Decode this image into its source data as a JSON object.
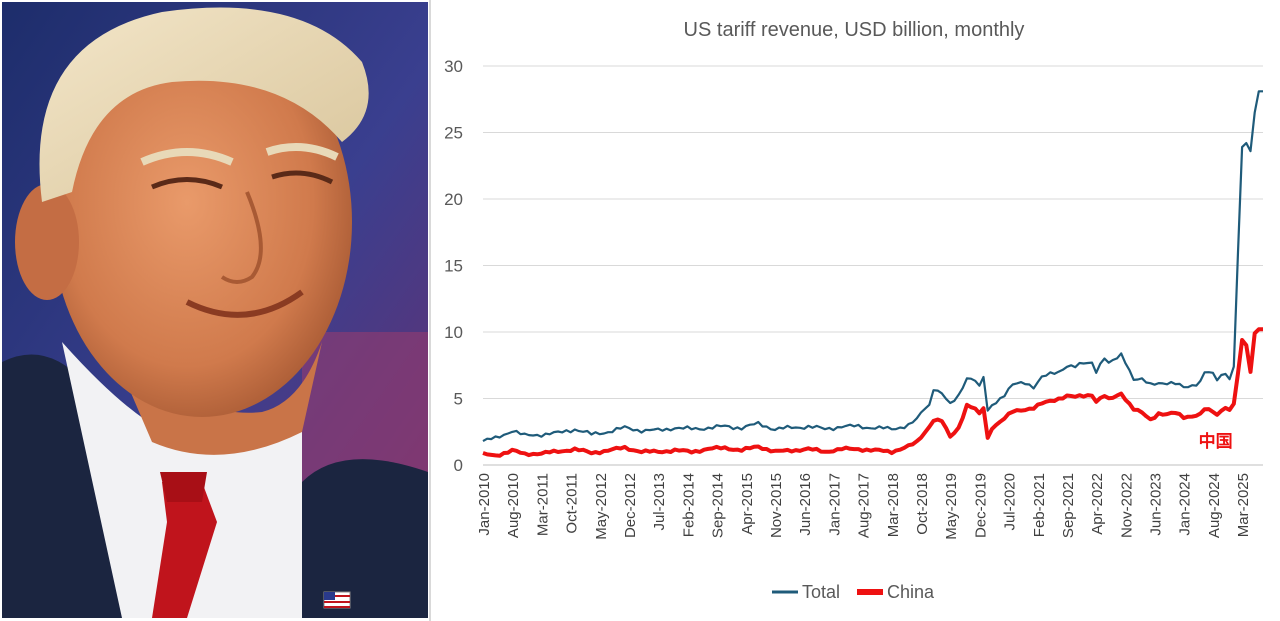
{
  "colors": {
    "total": "#1f5b7a",
    "china": "#ee1111",
    "grid": "#d9d9d9",
    "text": "#595959"
  },
  "photo": {
    "subject": "man-smiling-portrait"
  },
  "chart_data": {
    "type": "line",
    "title": "US tariff revenue, USD billion, monthly",
    "xlabel": "",
    "ylabel": "",
    "ylim": [
      0,
      30
    ],
    "yticks": [
      0,
      5,
      10,
      15,
      20,
      25,
      30
    ],
    "x_start": "Jan-2010",
    "x_end": "Aug-2025",
    "n_months": 188,
    "xtick_labels": [
      "Jan-2010",
      "Aug-2010",
      "Mar-2011",
      "Oct-2011",
      "May-2012",
      "Dec-2012",
      "Jul-2013",
      "Feb-2014",
      "Sep-2014",
      "Apr-2015",
      "Nov-2015",
      "Jun-2016",
      "Jan-2017",
      "Aug-2017",
      "Mar-2018",
      "Oct-2018",
      "May-2019",
      "Dec-2019",
      "Jul-2020",
      "Feb-2021",
      "Sep-2021",
      "Apr-2022",
      "Nov-2022",
      "Jun-2023",
      "Jan-2024",
      "Aug-2024",
      "Mar-2025"
    ],
    "legend": {
      "position": "bottom",
      "entries": [
        "Total",
        "China"
      ]
    },
    "annotation": {
      "text": "中国",
      "series": "China",
      "near": "Jun-2025"
    },
    "series": [
      {
        "name": "Total",
        "color": "#1f5b7a",
        "points": [
          [
            0,
            1.8
          ],
          [
            3,
            2.0
          ],
          [
            7,
            2.6
          ],
          [
            10,
            2.2
          ],
          [
            14,
            2.3
          ],
          [
            18,
            2.4
          ],
          [
            22,
            2.7
          ],
          [
            26,
            2.3
          ],
          [
            30,
            2.5
          ],
          [
            34,
            2.8
          ],
          [
            38,
            2.6
          ],
          [
            42,
            2.6
          ],
          [
            46,
            2.8
          ],
          [
            50,
            2.7
          ],
          [
            54,
            2.8
          ],
          [
            58,
            2.9
          ],
          [
            62,
            2.8
          ],
          [
            66,
            3.1
          ],
          [
            70,
            2.7
          ],
          [
            74,
            2.8
          ],
          [
            78,
            2.9
          ],
          [
            82,
            2.7
          ],
          [
            86,
            2.9
          ],
          [
            90,
            2.9
          ],
          [
            94,
            2.8
          ],
          [
            98,
            2.7
          ],
          [
            102,
            3.0
          ],
          [
            104,
            3.4
          ],
          [
            106,
            4.3
          ],
          [
            107,
            4.5
          ],
          [
            108,
            5.8
          ],
          [
            110,
            5.4
          ],
          [
            112,
            4.5
          ],
          [
            114,
            5.2
          ],
          [
            116,
            6.6
          ],
          [
            118,
            6.4
          ],
          [
            119,
            5.8
          ],
          [
            120,
            6.6
          ],
          [
            121,
            4.0
          ],
          [
            122,
            4.5
          ],
          [
            125,
            5.3
          ],
          [
            127,
            6.0
          ],
          [
            130,
            6.2
          ],
          [
            132,
            5.9
          ],
          [
            134,
            6.6
          ],
          [
            136,
            6.8
          ],
          [
            138,
            7.0
          ],
          [
            140,
            7.5
          ],
          [
            142,
            7.4
          ],
          [
            144,
            7.6
          ],
          [
            146,
            7.7
          ],
          [
            147,
            7.1
          ],
          [
            149,
            8.1
          ],
          [
            150,
            7.6
          ],
          [
            152,
            8.0
          ],
          [
            153,
            8.3
          ],
          [
            154,
            7.8
          ],
          [
            156,
            6.5
          ],
          [
            158,
            6.4
          ],
          [
            160,
            6.0
          ],
          [
            162,
            6.2
          ],
          [
            164,
            6.2
          ],
          [
            166,
            6.1
          ],
          [
            168,
            5.8
          ],
          [
            170,
            6.0
          ],
          [
            172,
            6.3
          ],
          [
            173,
            7.0
          ],
          [
            175,
            6.8
          ],
          [
            176,
            6.4
          ],
          [
            178,
            7.0
          ],
          [
            179,
            6.5
          ],
          [
            180,
            7.4
          ],
          [
            181,
            16.0
          ],
          [
            182,
            23.9
          ],
          [
            183,
            24.2
          ],
          [
            184,
            23.6
          ],
          [
            185,
            26.5
          ],
          [
            186,
            28.1
          ]
        ]
      },
      {
        "name": "China",
        "color": "#ee1111",
        "points": [
          [
            0,
            0.8
          ],
          [
            3,
            0.7
          ],
          [
            7,
            1.1
          ],
          [
            10,
            0.8
          ],
          [
            14,
            0.9
          ],
          [
            18,
            1.0
          ],
          [
            22,
            1.2
          ],
          [
            26,
            0.9
          ],
          [
            30,
            1.1
          ],
          [
            34,
            1.3
          ],
          [
            38,
            1.0
          ],
          [
            42,
            1.0
          ],
          [
            46,
            1.1
          ],
          [
            50,
            1.0
          ],
          [
            54,
            1.2
          ],
          [
            58,
            1.3
          ],
          [
            62,
            1.1
          ],
          [
            66,
            1.4
          ],
          [
            70,
            1.0
          ],
          [
            74,
            1.1
          ],
          [
            78,
            1.2
          ],
          [
            82,
            1.0
          ],
          [
            86,
            1.2
          ],
          [
            90,
            1.2
          ],
          [
            94,
            1.1
          ],
          [
            98,
            1.0
          ],
          [
            102,
            1.4
          ],
          [
            104,
            1.7
          ],
          [
            106,
            2.5
          ],
          [
            107,
            2.9
          ],
          [
            108,
            3.4
          ],
          [
            110,
            3.3
          ],
          [
            112,
            2.1
          ],
          [
            114,
            2.8
          ],
          [
            116,
            4.5
          ],
          [
            118,
            4.2
          ],
          [
            119,
            3.8
          ],
          [
            120,
            4.3
          ],
          [
            121,
            2.0
          ],
          [
            122,
            2.8
          ],
          [
            125,
            3.5
          ],
          [
            127,
            4.0
          ],
          [
            130,
            4.2
          ],
          [
            132,
            4.3
          ],
          [
            134,
            4.6
          ],
          [
            136,
            4.8
          ],
          [
            138,
            5.0
          ],
          [
            140,
            5.2
          ],
          [
            142,
            5.1
          ],
          [
            144,
            5.2
          ],
          [
            146,
            5.3
          ],
          [
            147,
            4.8
          ],
          [
            149,
            5.2
          ],
          [
            150,
            4.9
          ],
          [
            152,
            5.2
          ],
          [
            153,
            5.4
          ],
          [
            154,
            5.0
          ],
          [
            156,
            4.2
          ],
          [
            158,
            3.9
          ],
          [
            160,
            3.4
          ],
          [
            162,
            3.9
          ],
          [
            164,
            3.8
          ],
          [
            166,
            3.9
          ],
          [
            168,
            3.6
          ],
          [
            170,
            3.7
          ],
          [
            172,
            3.8
          ],
          [
            173,
            4.2
          ],
          [
            175,
            4.0
          ],
          [
            176,
            3.8
          ],
          [
            178,
            4.4
          ],
          [
            179,
            4.1
          ],
          [
            180,
            4.6
          ],
          [
            181,
            6.9
          ],
          [
            182,
            9.4
          ],
          [
            183,
            9.0
          ],
          [
            184,
            7.0
          ],
          [
            185,
            9.9
          ],
          [
            186,
            10.2
          ]
        ]
      }
    ]
  }
}
